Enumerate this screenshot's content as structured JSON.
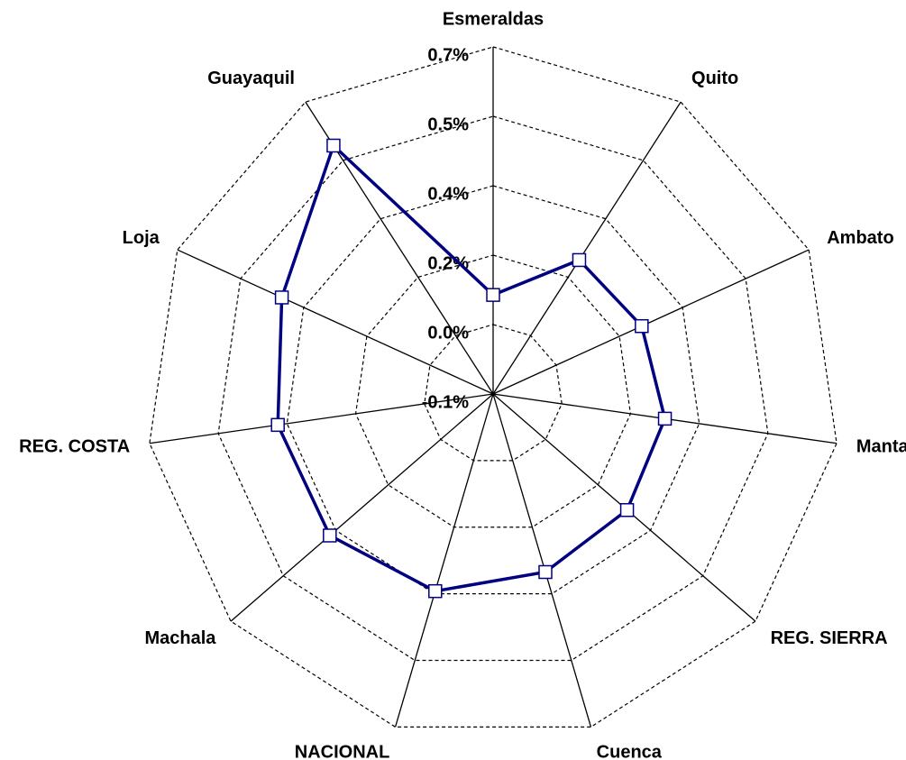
{
  "chart_data": {
    "type": "radar",
    "categories": [
      "Esmeraldas",
      "Quito",
      "Ambato",
      "Manta",
      "REG. SIERRA",
      "Cuenca",
      "NACIONAL",
      "Machala",
      "REG. COSTA",
      "Loja",
      "Guayaquil"
    ],
    "series": [
      {
        "color": "#000080",
        "values": [
          0.114,
          0.244,
          0.253,
          0.275,
          0.283,
          0.301,
          0.344,
          0.367,
          0.37,
          0.402,
          0.538
        ]
      }
    ],
    "ylim": [
      -0.1,
      0.65
    ],
    "yticks": [
      {
        "value": -0.1,
        "label": "-0.1%"
      },
      {
        "value": 0.05,
        "label": "0.0%"
      },
      {
        "value": 0.2,
        "label": "0.2%"
      },
      {
        "value": 0.35,
        "label": "0.4%"
      },
      {
        "value": 0.5,
        "label": "0.5%"
      },
      {
        "value": 0.65,
        "label": "0.7%"
      }
    ],
    "grid": true
  }
}
